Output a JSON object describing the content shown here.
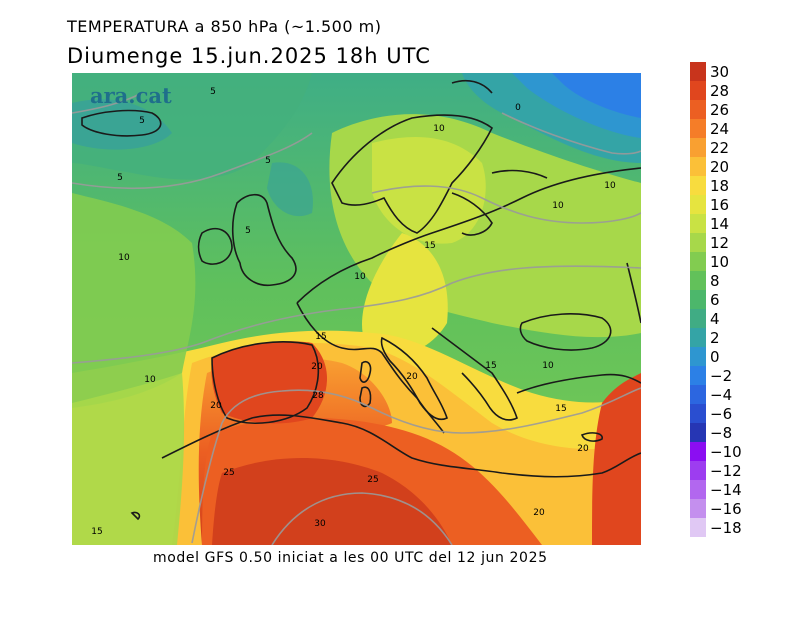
{
  "header": {
    "title_line1": "TEMPERATURA a 850 hPa (~1.500 m)",
    "title_line2": "Diumenge  15.jun.2025  18h  UTC"
  },
  "footer": {
    "caption": "model GFS 0.50 iniciat a les 00 UTC del 12 jun 2025"
  },
  "logo": {
    "text": "ara.cat"
  },
  "colorbar": {
    "labels": [
      "30",
      "28",
      "26",
      "24",
      "22",
      "20",
      "18",
      "16",
      "14",
      "12",
      "10",
      "8",
      "6",
      "4",
      "2",
      "0",
      "−2",
      "−4",
      "−6",
      "−8",
      "−10",
      "−12",
      "−14",
      "−16",
      "−18"
    ],
    "colors": [
      "#c8341c",
      "#e0461e",
      "#ec5f22",
      "#f57d28",
      "#f9a031",
      "#fbc038",
      "#f8dc3e",
      "#e6e43f",
      "#c9e244",
      "#a7d84a",
      "#82cc50",
      "#62c15a",
      "#4cb76b",
      "#40ac84",
      "#34a4a6",
      "#2e96d0",
      "#2c80e6",
      "#2c66e0",
      "#2a4ed0",
      "#2636b4",
      "#8b0ef2",
      "#9d3df0",
      "#b267ef",
      "#c48fee",
      "#e0c8f4"
    ]
  },
  "map_labels": [
    {
      "text": "5"
    },
    {
      "text": "5"
    },
    {
      "text": "5"
    },
    {
      "text": "5"
    },
    {
      "text": "5"
    },
    {
      "text": "0"
    },
    {
      "text": "10"
    },
    {
      "text": "10"
    },
    {
      "text": "10"
    },
    {
      "text": "10"
    },
    {
      "text": "10"
    },
    {
      "text": "10"
    },
    {
      "text": "15"
    },
    {
      "text": "15"
    },
    {
      "text": "20"
    },
    {
      "text": "28"
    },
    {
      "text": "20"
    },
    {
      "text": "20"
    },
    {
      "text": "15"
    },
    {
      "text": "10"
    },
    {
      "text": "15"
    },
    {
      "text": "20"
    },
    {
      "text": "25"
    },
    {
      "text": "25"
    },
    {
      "text": "30"
    },
    {
      "text": "20"
    },
    {
      "text": "15"
    }
  ]
}
